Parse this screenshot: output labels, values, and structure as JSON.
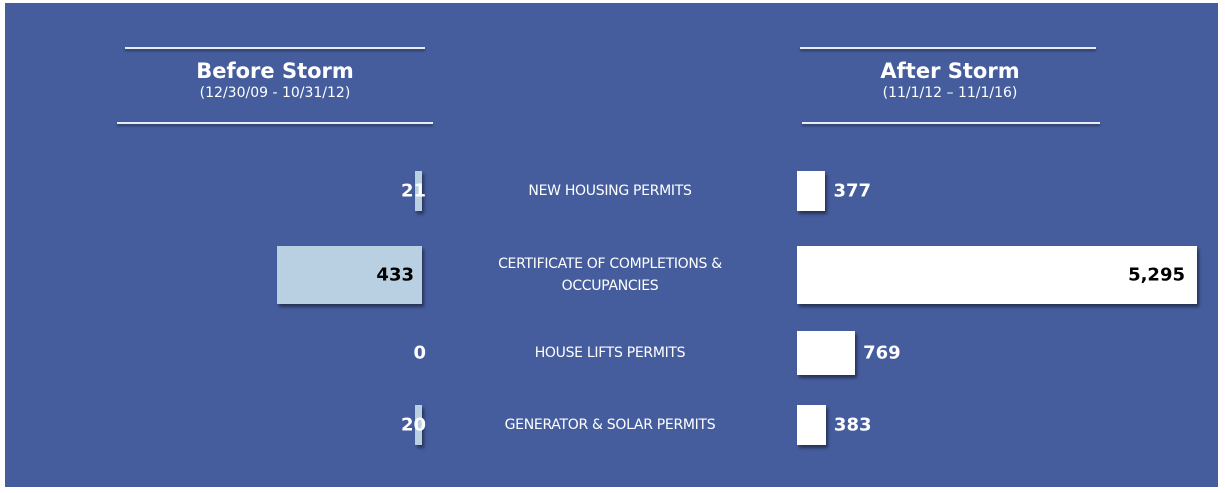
{
  "chart_data": {
    "type": "butterfly",
    "categories": [
      "NEW HOUSING PERMITS",
      "CERTIFICATE OF COMPLETIONS & OCCUPANCIES",
      "HOUSE LIFTS PERMITS",
      "GENERATOR & SOLAR PERMITS"
    ],
    "series": [
      {
        "name": "Before Storm",
        "subtitle": "(12/30/09 - 10/31/12)",
        "color": "#b9cfe2",
        "values": [
          21,
          433,
          0,
          20
        ]
      },
      {
        "name": "After Storm",
        "subtitle": "(11/1/12 – 11/1/16)",
        "color": "#ffffff",
        "values": [
          377,
          5295,
          769,
          383
        ],
        "value_labels": [
          "377",
          "5,295",
          "769",
          "383"
        ]
      }
    ]
  }
}
